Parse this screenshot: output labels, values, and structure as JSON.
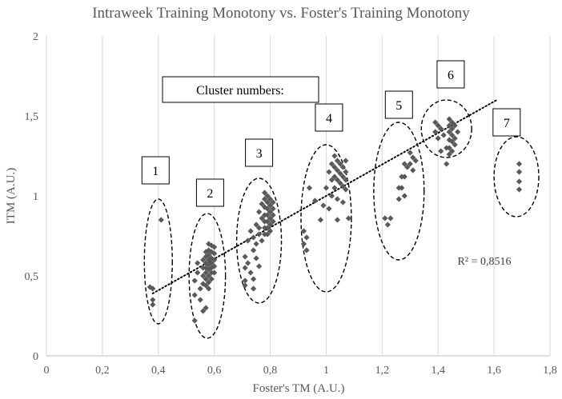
{
  "chart_data": {
    "type": "scatter",
    "title": "Intraweek Training Monotony vs. Foster's Training Monotony",
    "xlabel": "Foster's TM (A.U.)",
    "ylabel": "ITM (A.U.)",
    "xlim": [
      0,
      1.8
    ],
    "ylim": [
      0,
      2
    ],
    "x_ticks": [
      "0",
      "0,2",
      "0,4",
      "0,6",
      "0,8",
      "1",
      "1,2",
      "1,4",
      "1,6",
      "1,8"
    ],
    "y_ticks": [
      "0",
      "0,5",
      "1",
      "1,5",
      "2"
    ],
    "grid": "vertical",
    "marker_color": "#595959",
    "points": [
      [
        0.37,
        0.43
      ],
      [
        0.38,
        0.42
      ],
      [
        0.38,
        0.35
      ],
      [
        0.38,
        0.32
      ],
      [
        0.41,
        0.85
      ],
      [
        0.53,
        0.22
      ],
      [
        0.53,
        0.38
      ],
      [
        0.53,
        0.47
      ],
      [
        0.54,
        0.58
      ],
      [
        0.54,
        0.52
      ],
      [
        0.55,
        0.42
      ],
      [
        0.55,
        0.35
      ],
      [
        0.56,
        0.6
      ],
      [
        0.56,
        0.55
      ],
      [
        0.56,
        0.5
      ],
      [
        0.56,
        0.45
      ],
      [
        0.56,
        0.28
      ],
      [
        0.57,
        0.65
      ],
      [
        0.57,
        0.62
      ],
      [
        0.57,
        0.58
      ],
      [
        0.57,
        0.55
      ],
      [
        0.57,
        0.52
      ],
      [
        0.57,
        0.48
      ],
      [
        0.57,
        0.44
      ],
      [
        0.57,
        0.3
      ],
      [
        0.58,
        0.7
      ],
      [
        0.58,
        0.66
      ],
      [
        0.58,
        0.63
      ],
      [
        0.58,
        0.6
      ],
      [
        0.58,
        0.57
      ],
      [
        0.58,
        0.54
      ],
      [
        0.58,
        0.5
      ],
      [
        0.58,
        0.46
      ],
      [
        0.58,
        0.42
      ],
      [
        0.59,
        0.69
      ],
      [
        0.59,
        0.65
      ],
      [
        0.59,
        0.61
      ],
      [
        0.59,
        0.58
      ],
      [
        0.59,
        0.55
      ],
      [
        0.59,
        0.52
      ],
      [
        0.59,
        0.48
      ],
      [
        0.6,
        0.68
      ],
      [
        0.6,
        0.64
      ],
      [
        0.6,
        0.6
      ],
      [
        0.6,
        0.56
      ],
      [
        0.6,
        0.52
      ],
      [
        0.71,
        0.62
      ],
      [
        0.71,
        0.55
      ],
      [
        0.71,
        0.47
      ],
      [
        0.71,
        0.44
      ],
      [
        0.72,
        0.58
      ],
      [
        0.72,
        0.72
      ],
      [
        0.73,
        0.78
      ],
      [
        0.73,
        0.52
      ],
      [
        0.74,
        0.48
      ],
      [
        0.74,
        0.42
      ],
      [
        0.74,
        0.74
      ],
      [
        0.74,
        0.66
      ],
      [
        0.75,
        0.82
      ],
      [
        0.75,
        0.7
      ],
      [
        0.75,
        0.61
      ],
      [
        0.76,
        0.9
      ],
      [
        0.76,
        0.8
      ],
      [
        0.76,
        0.76
      ],
      [
        0.76,
        0.56
      ],
      [
        0.77,
        0.95
      ],
      [
        0.77,
        0.86
      ],
      [
        0.77,
        0.72
      ],
      [
        0.78,
        1.02
      ],
      [
        0.78,
        0.98
      ],
      [
        0.78,
        0.93
      ],
      [
        0.78,
        0.88
      ],
      [
        0.78,
        0.84
      ],
      [
        0.78,
        0.8
      ],
      [
        0.78,
        0.76
      ],
      [
        0.79,
        1.0
      ],
      [
        0.79,
        0.96
      ],
      [
        0.79,
        0.92
      ],
      [
        0.79,
        0.88
      ],
      [
        0.79,
        0.84
      ],
      [
        0.79,
        0.8
      ],
      [
        0.79,
        0.76
      ],
      [
        0.8,
        0.98
      ],
      [
        0.8,
        0.94
      ],
      [
        0.8,
        0.9
      ],
      [
        0.8,
        0.86
      ],
      [
        0.8,
        0.82
      ],
      [
        0.8,
        0.78
      ],
      [
        0.81,
        0.96
      ],
      [
        0.81,
        0.92
      ],
      [
        0.81,
        0.88
      ],
      [
        0.81,
        0.84
      ],
      [
        0.92,
        0.78
      ],
      [
        0.92,
        0.7
      ],
      [
        0.93,
        0.66
      ],
      [
        0.93,
        0.74
      ],
      [
        0.94,
        1.05
      ],
      [
        0.96,
        0.97
      ],
      [
        0.98,
        0.85
      ],
      [
        0.99,
        0.94
      ],
      [
        1.0,
        1.05
      ],
      [
        1.01,
        1.15
      ],
      [
        1.01,
        0.92
      ],
      [
        1.02,
        1.2
      ],
      [
        1.02,
        1.1
      ],
      [
        1.02,
        1.0
      ],
      [
        1.03,
        1.25
      ],
      [
        1.03,
        1.18
      ],
      [
        1.03,
        1.12
      ],
      [
        1.03,
        1.05
      ],
      [
        1.04,
        1.22
      ],
      [
        1.04,
        1.16
      ],
      [
        1.04,
        1.1
      ],
      [
        1.04,
        0.98
      ],
      [
        1.04,
        0.85
      ],
      [
        1.05,
        1.2
      ],
      [
        1.05,
        1.14
      ],
      [
        1.05,
        1.08
      ],
      [
        1.06,
        1.18
      ],
      [
        1.06,
        1.12
      ],
      [
        1.06,
        1.06
      ],
      [
        1.06,
        0.96
      ],
      [
        1.07,
        1.22
      ],
      [
        1.07,
        1.15
      ],
      [
        1.07,
        1.1
      ],
      [
        1.07,
        1.04
      ],
      [
        1.08,
        0.86
      ],
      [
        1.21,
        0.86
      ],
      [
        1.22,
        0.82
      ],
      [
        1.23,
        0.86
      ],
      [
        1.26,
        1.05
      ],
      [
        1.26,
        0.98
      ],
      [
        1.27,
        1.12
      ],
      [
        1.27,
        1.05
      ],
      [
        1.28,
        1.2
      ],
      [
        1.28,
        1.12
      ],
      [
        1.28,
        1.0
      ],
      [
        1.29,
        1.18
      ],
      [
        1.3,
        1.27
      ],
      [
        1.3,
        1.2
      ],
      [
        1.31,
        1.24
      ],
      [
        1.31,
        1.16
      ],
      [
        1.32,
        1.22
      ],
      [
        1.39,
        1.46
      ],
      [
        1.39,
        1.4
      ],
      [
        1.4,
        1.44
      ],
      [
        1.4,
        1.36
      ],
      [
        1.41,
        1.42
      ],
      [
        1.41,
        1.28
      ],
      [
        1.42,
        1.38
      ],
      [
        1.43,
        1.3
      ],
      [
        1.43,
        1.2
      ],
      [
        1.44,
        1.48
      ],
      [
        1.44,
        1.44
      ],
      [
        1.44,
        1.4
      ],
      [
        1.44,
        1.35
      ],
      [
        1.44,
        1.3
      ],
      [
        1.44,
        1.26
      ],
      [
        1.45,
        1.46
      ],
      [
        1.45,
        1.42
      ],
      [
        1.45,
        1.38
      ],
      [
        1.45,
        1.34
      ],
      [
        1.45,
        1.28
      ],
      [
        1.46,
        1.44
      ],
      [
        1.46,
        1.36
      ],
      [
        1.46,
        1.32
      ],
      [
        1.47,
        1.4
      ],
      [
        1.69,
        1.2
      ],
      [
        1.69,
        1.15
      ],
      [
        1.69,
        1.09
      ],
      [
        1.69,
        1.04
      ]
    ],
    "trendline": {
      "style": "dotted",
      "x": [
        0.38,
        1.61
      ],
      "y": [
        0.39,
        1.6
      ]
    },
    "r_squared": "R² = 0,8516",
    "annotation": "Cluster numbers:",
    "clusters": [
      {
        "label": "1",
        "cx": 0.4,
        "cy": 0.59,
        "rx": 0.05,
        "ry": 0.39,
        "label_x": 0.39,
        "label_y": 1.16
      },
      {
        "label": "2",
        "cx": 0.575,
        "cy": 0.5,
        "rx": 0.065,
        "ry": 0.39,
        "label_x": 0.585,
        "label_y": 1.02
      },
      {
        "label": "3",
        "cx": 0.76,
        "cy": 0.72,
        "rx": 0.08,
        "ry": 0.39,
        "label_x": 0.76,
        "label_y": 1.27
      },
      {
        "label": "4",
        "cx": 1.0,
        "cy": 0.86,
        "rx": 0.09,
        "ry": 0.46,
        "label_x": 1.01,
        "label_y": 1.49
      },
      {
        "label": "5",
        "cx": 1.26,
        "cy": 1.03,
        "rx": 0.09,
        "ry": 0.43,
        "label_x": 1.26,
        "label_y": 1.57
      },
      {
        "label": "6",
        "cx": 1.43,
        "cy": 1.42,
        "rx": 0.09,
        "ry": 0.18,
        "label_x": 1.445,
        "label_y": 1.76
      },
      {
        "label": "7",
        "cx": 1.68,
        "cy": 1.12,
        "rx": 0.08,
        "ry": 0.25,
        "label_x": 1.645,
        "label_y": 1.46
      }
    ]
  }
}
